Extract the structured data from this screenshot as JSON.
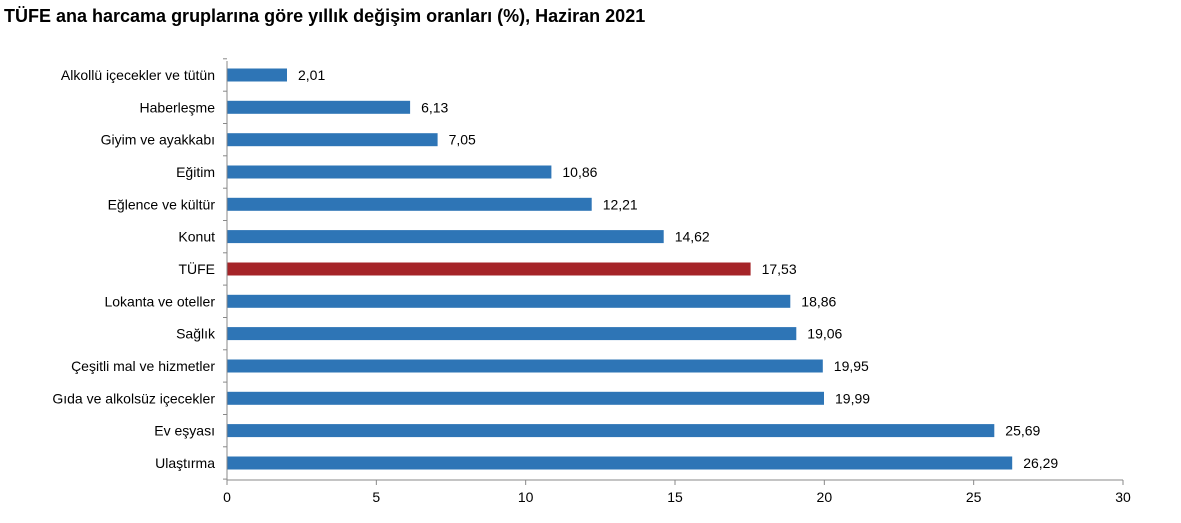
{
  "chart_data": {
    "type": "bar",
    "orientation": "horizontal",
    "title": "TÜFE ana harcama gruplarına göre yıllık değişim oranları (%), Haziran 2021",
    "xlabel": "",
    "ylabel": "",
    "categories": [
      "Alkollü içecekler ve tütün",
      "Haberleşme",
      "Giyim ve ayakkabı",
      "Eğitim",
      "Eğlence ve kültür",
      "Konut",
      "TÜFE",
      "Lokanta ve oteller",
      "Sağlık",
      "Çeşitli mal ve hizmetler",
      "Gıda ve alkolsüz içecekler",
      "Ev eşyası",
      "Ulaştırma"
    ],
    "values": [
      2.01,
      6.13,
      7.05,
      10.86,
      12.21,
      14.62,
      17.53,
      18.86,
      19.06,
      19.95,
      19.99,
      25.69,
      26.29
    ],
    "value_labels": [
      "2,01",
      "6,13",
      "7,05",
      "10,86",
      "12,21",
      "14,62",
      "17,53",
      "18,86",
      "19,06",
      "19,95",
      "19,99",
      "25,69",
      "26,29"
    ],
    "highlight_category": "TÜFE",
    "xlim": [
      0,
      30
    ],
    "xticks": [
      0,
      5,
      10,
      15,
      20,
      25,
      30
    ],
    "grid": false,
    "legend": "none",
    "colors": {
      "bar": "#2E75B6",
      "highlight": "#A52428",
      "axis": "#888888"
    }
  }
}
